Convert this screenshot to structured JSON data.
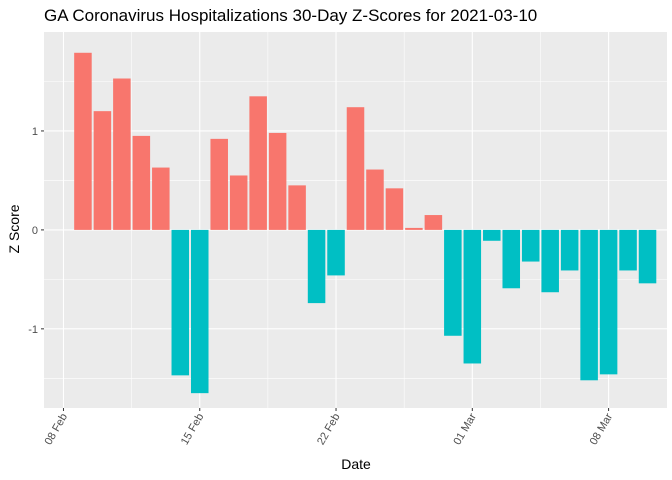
{
  "chart_data": {
    "type": "bar",
    "title": "GA Coronavirus Hospitalizations 30-Day Z-Scores for 2021-03-10",
    "xlabel": "Date",
    "ylabel": "Z Score",
    "x": [
      "2021-02-09",
      "2021-02-10",
      "2021-02-11",
      "2021-02-12",
      "2021-02-13",
      "2021-02-14",
      "2021-02-15",
      "2021-02-16",
      "2021-02-17",
      "2021-02-18",
      "2021-02-19",
      "2021-02-20",
      "2021-02-21",
      "2021-02-22",
      "2021-02-23",
      "2021-02-24",
      "2021-02-25",
      "2021-02-26",
      "2021-02-27",
      "2021-02-28",
      "2021-03-01",
      "2021-03-02",
      "2021-03-03",
      "2021-03-04",
      "2021-03-05",
      "2021-03-06",
      "2021-03-07",
      "2021-03-08",
      "2021-03-09",
      "2021-03-10"
    ],
    "values": [
      1.79,
      1.2,
      1.53,
      0.95,
      0.63,
      -1.47,
      -1.65,
      0.92,
      0.55,
      1.35,
      0.98,
      0.45,
      -0.74,
      -0.46,
      1.24,
      0.61,
      0.42,
      0.02,
      0.15,
      -1.07,
      -1.35,
      -0.11,
      -0.59,
      -0.32,
      -0.63,
      -0.41,
      -1.52,
      -1.46,
      -0.41,
      -0.54
    ],
    "xlim": [
      "2021-02-07",
      "2021-03-11"
    ],
    "ylim": [
      -1.8,
      2.0
    ],
    "x_ticks": [
      "2021-02-08",
      "2021-02-15",
      "2021-02-22",
      "2021-03-01",
      "2021-03-08"
    ],
    "x_tick_labels": [
      "08 Feb",
      "15 Feb",
      "22 Feb",
      "01 Mar",
      "08 Mar"
    ],
    "y_ticks": [
      -1,
      0,
      1
    ],
    "y_tick_labels": [
      "-1",
      "0",
      "1"
    ],
    "grid": true,
    "legend": "none",
    "colors": {
      "positive": "#F8766D",
      "negative": "#00BFC4",
      "panel": "#EBEBEB",
      "grid": "#FFFFFF"
    }
  }
}
